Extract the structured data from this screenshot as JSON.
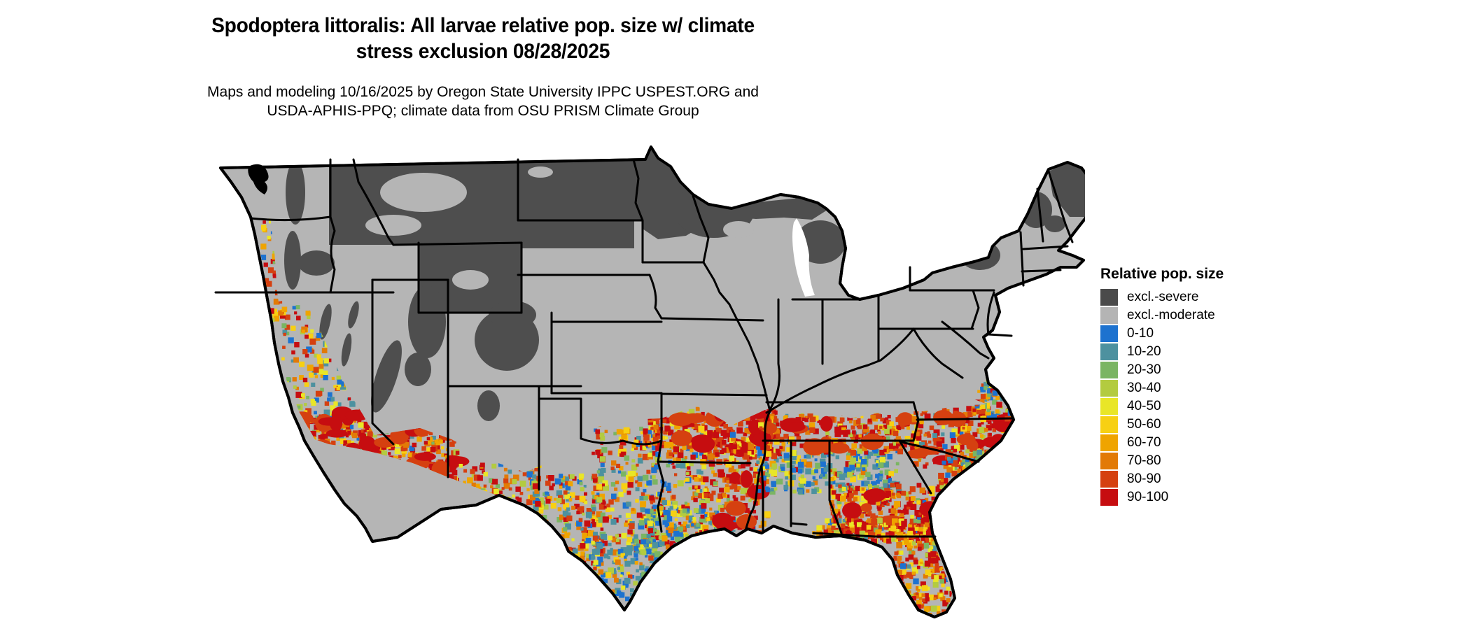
{
  "title": {
    "line1": "Spodoptera littoralis: All larvae relative pop. size w/ climate",
    "line2": "stress exclusion 08/28/2025"
  },
  "subtitle": {
    "line1": "Maps and modeling 10/16/2025 by Oregon State University IPPC USPEST.ORG and",
    "line2": "USDA-APHIS-PPQ; climate data from OSU PRISM Climate Group"
  },
  "map": {
    "region": "Continental United States",
    "land_color": "#b5b5b5",
    "excluded_severe_color": "#4e4e4e",
    "border_color": "#000000",
    "water_color": "#ffffff"
  },
  "legend": {
    "title": "Relative pop. size",
    "entries": [
      {
        "label": "excl.-severe",
        "color": "#4a4a4a"
      },
      {
        "label": "excl.-moderate",
        "color": "#b4b4b4"
      },
      {
        "label": "0-10",
        "color": "#1d72cf"
      },
      {
        "label": "10-20",
        "color": "#4d919f"
      },
      {
        "label": "20-30",
        "color": "#7ab563"
      },
      {
        "label": "30-40",
        "color": "#b3cb40"
      },
      {
        "label": "40-50",
        "color": "#e9e627"
      },
      {
        "label": "50-60",
        "color": "#f7d013"
      },
      {
        "label": "60-70",
        "color": "#efa400"
      },
      {
        "label": "70-80",
        "color": "#e27a06"
      },
      {
        "label": "80-90",
        "color": "#d54010"
      },
      {
        "label": "90-100",
        "color": "#c60d10"
      }
    ]
  }
}
